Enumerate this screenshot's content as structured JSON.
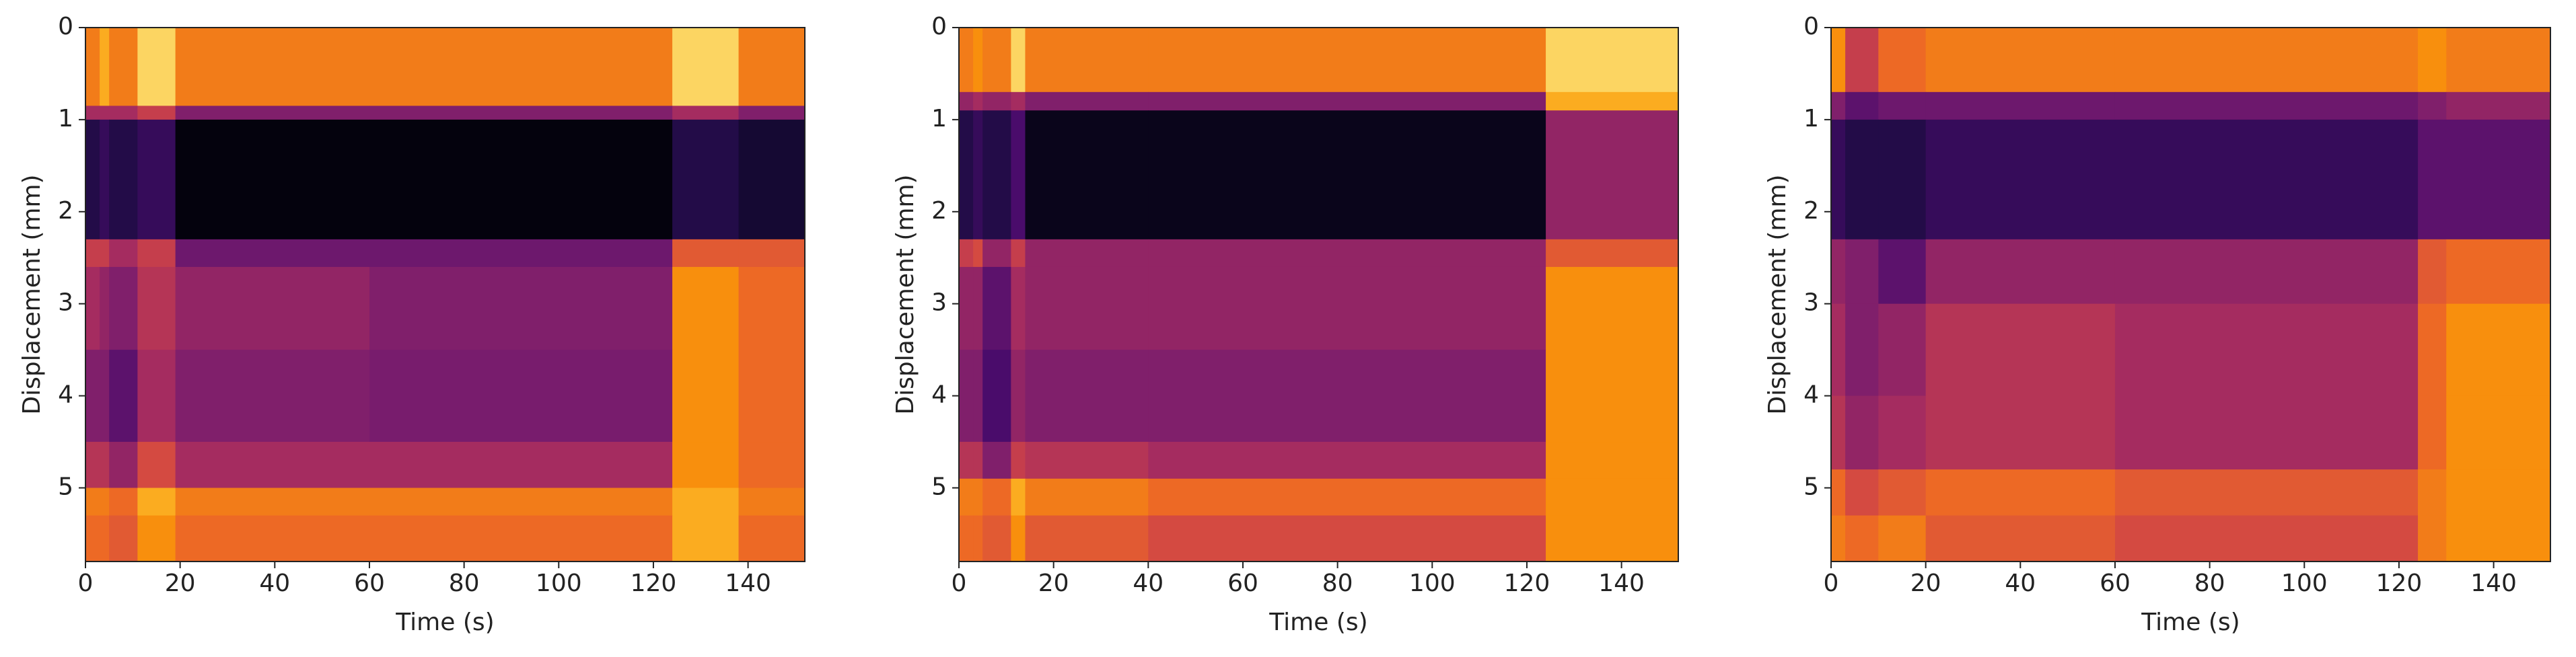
{
  "chart_data": [
    {
      "type": "heatmap",
      "xlabel": "Time (s)",
      "ylabel": "Displacement (mm)",
      "colormap": "inferno",
      "xlim": [
        0,
        152
      ],
      "ylim": [
        5.8,
        0
      ],
      "xticks": [
        0,
        20,
        40,
        60,
        80,
        100,
        120,
        140
      ],
      "yticks": [
        0,
        1,
        2,
        3,
        4,
        5
      ],
      "x_edges": [
        0,
        3,
        5,
        11,
        19,
        60,
        124,
        138,
        152
      ],
      "y_edges": [
        0,
        0.85,
        1.0,
        2.3,
        2.6,
        3.5,
        4.5,
        5.0,
        5.3,
        5.8
      ],
      "z": [
        [
          0.8,
          0.9,
          0.8,
          0.95,
          0.8,
          0.8,
          0.95,
          0.8
        ],
        [
          0.5,
          0.5,
          0.5,
          0.6,
          0.4,
          0.4,
          0.5,
          0.4
        ],
        [
          0.15,
          0.2,
          0.15,
          0.2,
          0.02,
          0.02,
          0.15,
          0.1
        ],
        [
          0.6,
          0.6,
          0.5,
          0.6,
          0.35,
          0.35,
          0.7,
          0.7
        ],
        [
          0.5,
          0.45,
          0.4,
          0.55,
          0.45,
          0.4,
          0.85,
          0.75
        ],
        [
          0.4,
          0.4,
          0.3,
          0.5,
          0.4,
          0.38,
          0.85,
          0.75
        ],
        [
          0.55,
          0.55,
          0.45,
          0.65,
          0.5,
          0.5,
          0.85,
          0.75
        ],
        [
          0.8,
          0.8,
          0.75,
          0.9,
          0.8,
          0.8,
          0.9,
          0.8
        ],
        [
          0.75,
          0.75,
          0.7,
          0.85,
          0.75,
          0.75,
          0.9,
          0.75
        ]
      ]
    },
    {
      "type": "heatmap",
      "xlabel": "Time (s)",
      "ylabel": "Displacement (mm)",
      "colormap": "inferno",
      "xlim": [
        0,
        152
      ],
      "ylim": [
        5.8,
        0
      ],
      "xticks": [
        0,
        20,
        40,
        60,
        80,
        100,
        120,
        140
      ],
      "yticks": [
        0,
        1,
        2,
        3,
        4,
        5
      ],
      "x_edges": [
        0,
        3,
        5,
        11,
        14,
        40,
        124,
        152
      ],
      "y_edges": [
        0,
        0.7,
        0.9,
        2.3,
        2.6,
        3.5,
        4.5,
        4.9,
        5.3,
        5.8
      ],
      "z": [
        [
          0.8,
          0.85,
          0.8,
          0.95,
          0.8,
          0.8,
          0.95
        ],
        [
          0.45,
          0.5,
          0.45,
          0.5,
          0.4,
          0.4,
          0.9
        ],
        [
          0.15,
          0.2,
          0.15,
          0.25,
          0.05,
          0.05,
          0.45
        ],
        [
          0.6,
          0.65,
          0.45,
          0.6,
          0.45,
          0.45,
          0.7
        ],
        [
          0.45,
          0.45,
          0.3,
          0.5,
          0.45,
          0.45,
          0.85
        ],
        [
          0.4,
          0.4,
          0.25,
          0.45,
          0.4,
          0.4,
          0.85
        ],
        [
          0.55,
          0.55,
          0.4,
          0.6,
          0.55,
          0.5,
          0.85
        ],
        [
          0.8,
          0.8,
          0.75,
          0.9,
          0.8,
          0.75,
          0.85
        ],
        [
          0.75,
          0.75,
          0.7,
          0.85,
          0.7,
          0.65,
          0.85
        ]
      ]
    },
    {
      "type": "heatmap",
      "xlabel": "Time (s)",
      "ylabel": "Displacement (mm)",
      "colormap": "inferno",
      "xlim": [
        0,
        152
      ],
      "ylim": [
        5.8,
        0
      ],
      "xticks": [
        0,
        20,
        40,
        60,
        80,
        100,
        120,
        140
      ],
      "yticks": [
        0,
        1,
        2,
        3,
        4,
        5
      ],
      "x_edges": [
        0,
        3,
        10,
        20,
        60,
        124,
        130,
        152
      ],
      "y_edges": [
        0,
        0.7,
        1.0,
        2.3,
        3.0,
        4.0,
        4.8,
        5.3,
        5.8
      ],
      "z": [
        [
          0.85,
          0.6,
          0.75,
          0.8,
          0.8,
          0.85,
          0.8
        ],
        [
          0.4,
          0.3,
          0.35,
          0.35,
          0.35,
          0.4,
          0.45
        ],
        [
          0.2,
          0.15,
          0.15,
          0.2,
          0.2,
          0.3,
          0.3
        ],
        [
          0.45,
          0.4,
          0.3,
          0.45,
          0.45,
          0.7,
          0.75
        ],
        [
          0.5,
          0.4,
          0.45,
          0.55,
          0.5,
          0.75,
          0.85
        ],
        [
          0.55,
          0.45,
          0.5,
          0.55,
          0.5,
          0.75,
          0.85
        ],
        [
          0.75,
          0.65,
          0.7,
          0.75,
          0.7,
          0.8,
          0.85
        ],
        [
          0.8,
          0.75,
          0.8,
          0.7,
          0.65,
          0.8,
          0.85
        ]
      ]
    }
  ]
}
